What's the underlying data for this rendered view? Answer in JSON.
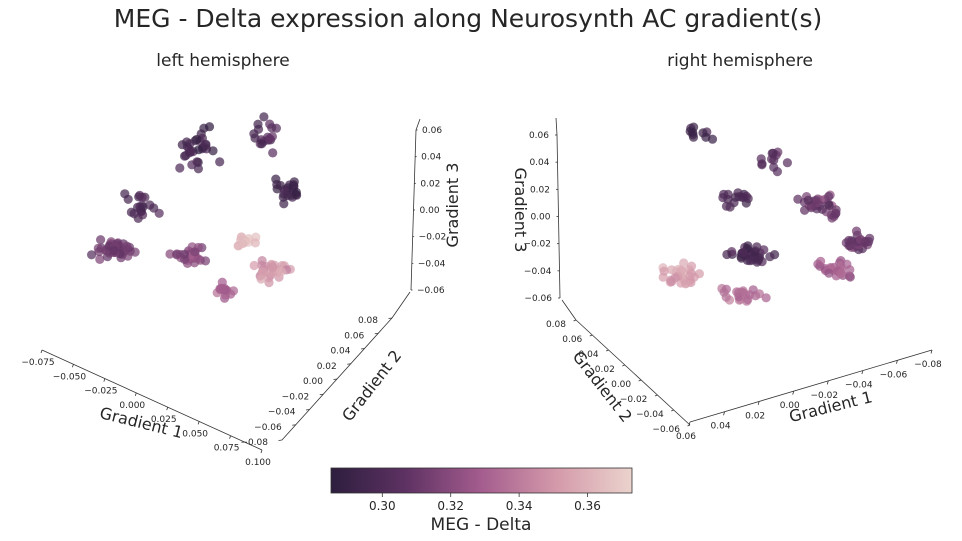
{
  "title": "MEG - Delta expression along Neurosynth AC gradient(s)",
  "colors": {
    "cmap_low": "#2d1e3e",
    "cmap_mid": "#a45d8e",
    "cmap_high": "#ebd3cd",
    "axis": "#333333",
    "text": "#262626"
  },
  "chart_data": [
    {
      "type": "scatter",
      "subtitle": "left hemisphere",
      "xlabel": "Gradient 1",
      "ylabel": "Gradient 2",
      "zlabel": "Gradient 3",
      "x_ticks": [
        "−0.075",
        "−0.050",
        "−0.025",
        "0.000",
        "0.025",
        "0.050",
        "0.075",
        "0.100"
      ],
      "y_ticks": [
        "−0.08",
        "−0.06",
        "−0.04",
        "−0.02",
        "0.00",
        "0.02",
        "0.04",
        "0.06",
        "0.08"
      ],
      "z_ticks": [
        "−0.06",
        "−0.04",
        "−0.02",
        "0.00",
        "0.02",
        "0.04",
        "0.06"
      ],
      "color_value": "MEG - Delta",
      "grid": false
    },
    {
      "type": "scatter",
      "subtitle": "right hemisphere",
      "xlabel": "Gradient 1",
      "ylabel": "Gradient 2",
      "zlabel": "Gradient 3",
      "x_ticks": [
        "−0.08",
        "−0.06",
        "−0.04",
        "−0.02",
        "0.00",
        "0.02",
        "0.04",
        "0.06"
      ],
      "y_ticks": [
        "−0.06",
        "−0.04",
        "−0.02",
        "0.00",
        "0.02",
        "0.04",
        "0.06",
        "0.08"
      ],
      "z_ticks": [
        "−0.06",
        "−0.04",
        "−0.02",
        "0.00",
        "0.02",
        "0.04",
        "0.06"
      ],
      "color_value": "MEG - Delta",
      "grid": false
    }
  ],
  "colorbar": {
    "label": "MEG - Delta",
    "range": [
      0.285,
      0.373
    ],
    "ticks": [
      "0.30",
      "0.32",
      "0.34",
      "0.36"
    ],
    "tick_values": [
      0.3,
      0.32,
      0.34,
      0.36
    ]
  }
}
